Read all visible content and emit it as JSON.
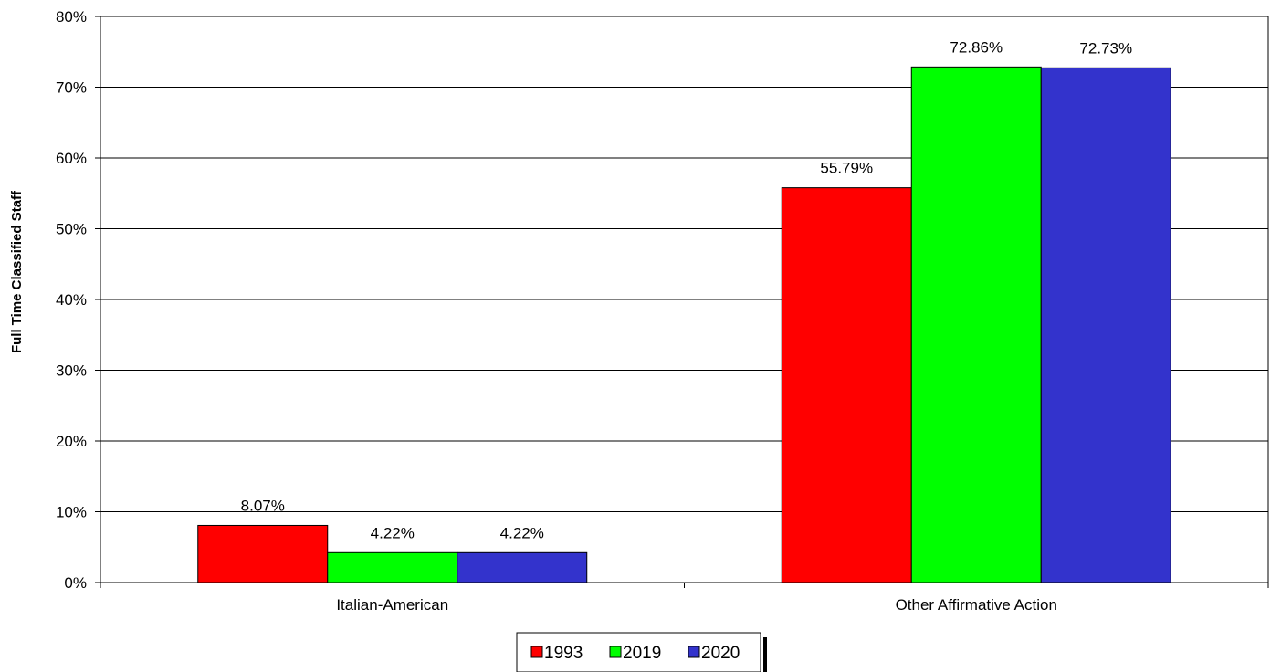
{
  "chart_data": {
    "type": "bar",
    "categories": [
      "Italian-American",
      "Other Affirmative Action"
    ],
    "series": [
      {
        "name": "1993",
        "values": [
          8.07,
          55.79
        ],
        "labels": [
          "8.07%",
          "55.79%"
        ],
        "color": "#FF0000"
      },
      {
        "name": "2019",
        "values": [
          4.22,
          72.86
        ],
        "labels": [
          "4.22%",
          "72.86%"
        ],
        "color": "#00FF00"
      },
      {
        "name": "2020",
        "values": [
          4.22,
          72.73
        ],
        "labels": [
          "4.22%",
          "72.73%"
        ],
        "color": "#3333CC"
      }
    ],
    "ylabel": "Full Time Classified Staff",
    "ylim": [
      0,
      80
    ],
    "yticks": [
      0,
      10,
      20,
      30,
      40,
      50,
      60,
      70,
      80
    ],
    "ytick_labels": [
      "0%",
      "10%",
      "20%",
      "30%",
      "40%",
      "50%",
      "60%",
      "70%",
      "80%"
    ],
    "grid": true,
    "legend_position": "bottom-center"
  }
}
